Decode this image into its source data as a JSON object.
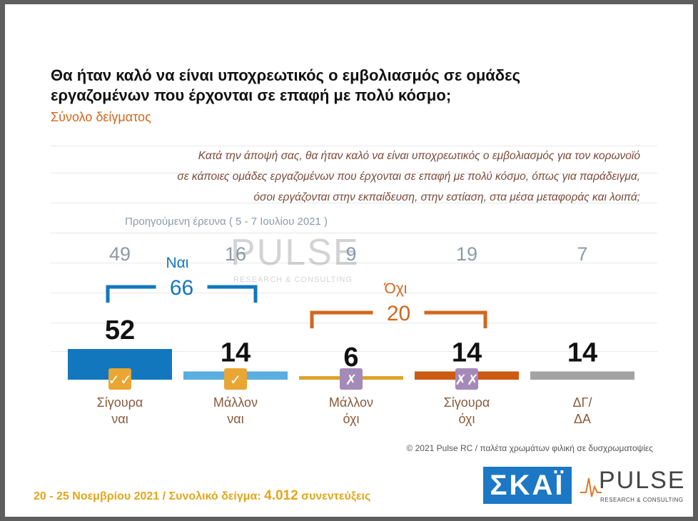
{
  "header": {
    "title": "Θα ήταν καλό να είναι υποχρεωτικός ο εμβολιασμός σε ομάδες εργαζομένων που έρχονται σε επαφή με πολύ κόσμο;",
    "subtitle": "Σύνολο δείγματος"
  },
  "question": {
    "lines": [
      "Κατά την άποψή σας, θα ήταν καλό να είναι υποχρεωτικός ο εμβολιασμός για τον κορωνοϊό",
      "σε κάποιες ομάδες εργαζομένων που έρχονται σε επαφή με πολύ κόσμο, όπως για παράδειγμα,",
      "όσοι εργάζονται στην εκπαίδευση, στην εστίαση, στα μέσα μεταφοράς και λοιπά;"
    ]
  },
  "previous_survey_label": "Προηγούμενη έρευνα  ( 5 - 7 Ιουλίου 2021 )",
  "watermark": {
    "brand": "PULSE",
    "tagline": "RESEARCH & CONSULTING"
  },
  "chart_data": {
    "type": "bar",
    "categories": [
      "Σίγουρα ναι",
      "Μάλλον ναι",
      "Μάλλον όχι",
      "Σίγουρα όχι",
      "ΔΓ/ ΔΑ"
    ],
    "category_lines": [
      [
        "Σίγουρα",
        "ναι"
      ],
      [
        "Μάλλον",
        "ναι"
      ],
      [
        "Μάλλον",
        "όχι"
      ],
      [
        "Σίγουρα",
        "όχι"
      ],
      [
        "ΔΓ/",
        "ΔΑ"
      ]
    ],
    "values": [
      52,
      14,
      6,
      14,
      14
    ],
    "previous_values": [
      49,
      16,
      9,
      19,
      7
    ],
    "colors": [
      "#1277bd",
      "#5aaee0",
      "#e0a22a",
      "#cc5a12",
      "#a3a3a3"
    ],
    "badges": [
      {
        "symbol": "✓✓",
        "color": "#e9a633"
      },
      {
        "symbol": "✓",
        "color": "#e9a633"
      },
      {
        "symbol": "✗",
        "color": "#a48ab8"
      },
      {
        "symbol": "✗✗",
        "color": "#a48ab8"
      }
    ],
    "groups": [
      {
        "label": "Ναι",
        "total": 66,
        "color": "#1277bd",
        "from": 0,
        "to": 1
      },
      {
        "label": "Όχι",
        "total": 20,
        "color": "#d4661c",
        "from": 2,
        "to": 3
      }
    ],
    "ylim": [
      0,
      52
    ]
  },
  "credits": "© 2021 Pulse RC   /   παλέτα χρωμάτων φιλική σε δυσχρωματοψίες",
  "footer": {
    "dates": "20 - 25  Νοεμβρίου 2021  /  Συνολικό δείγμα:",
    "sample": "4.012",
    "sample_suffix": "συνεντεύξεις"
  },
  "logos": {
    "skai": "ΣΚΑΪ",
    "pulse": "PULSE",
    "pulse_tagline": "RESEARCH & CONSULTING"
  }
}
